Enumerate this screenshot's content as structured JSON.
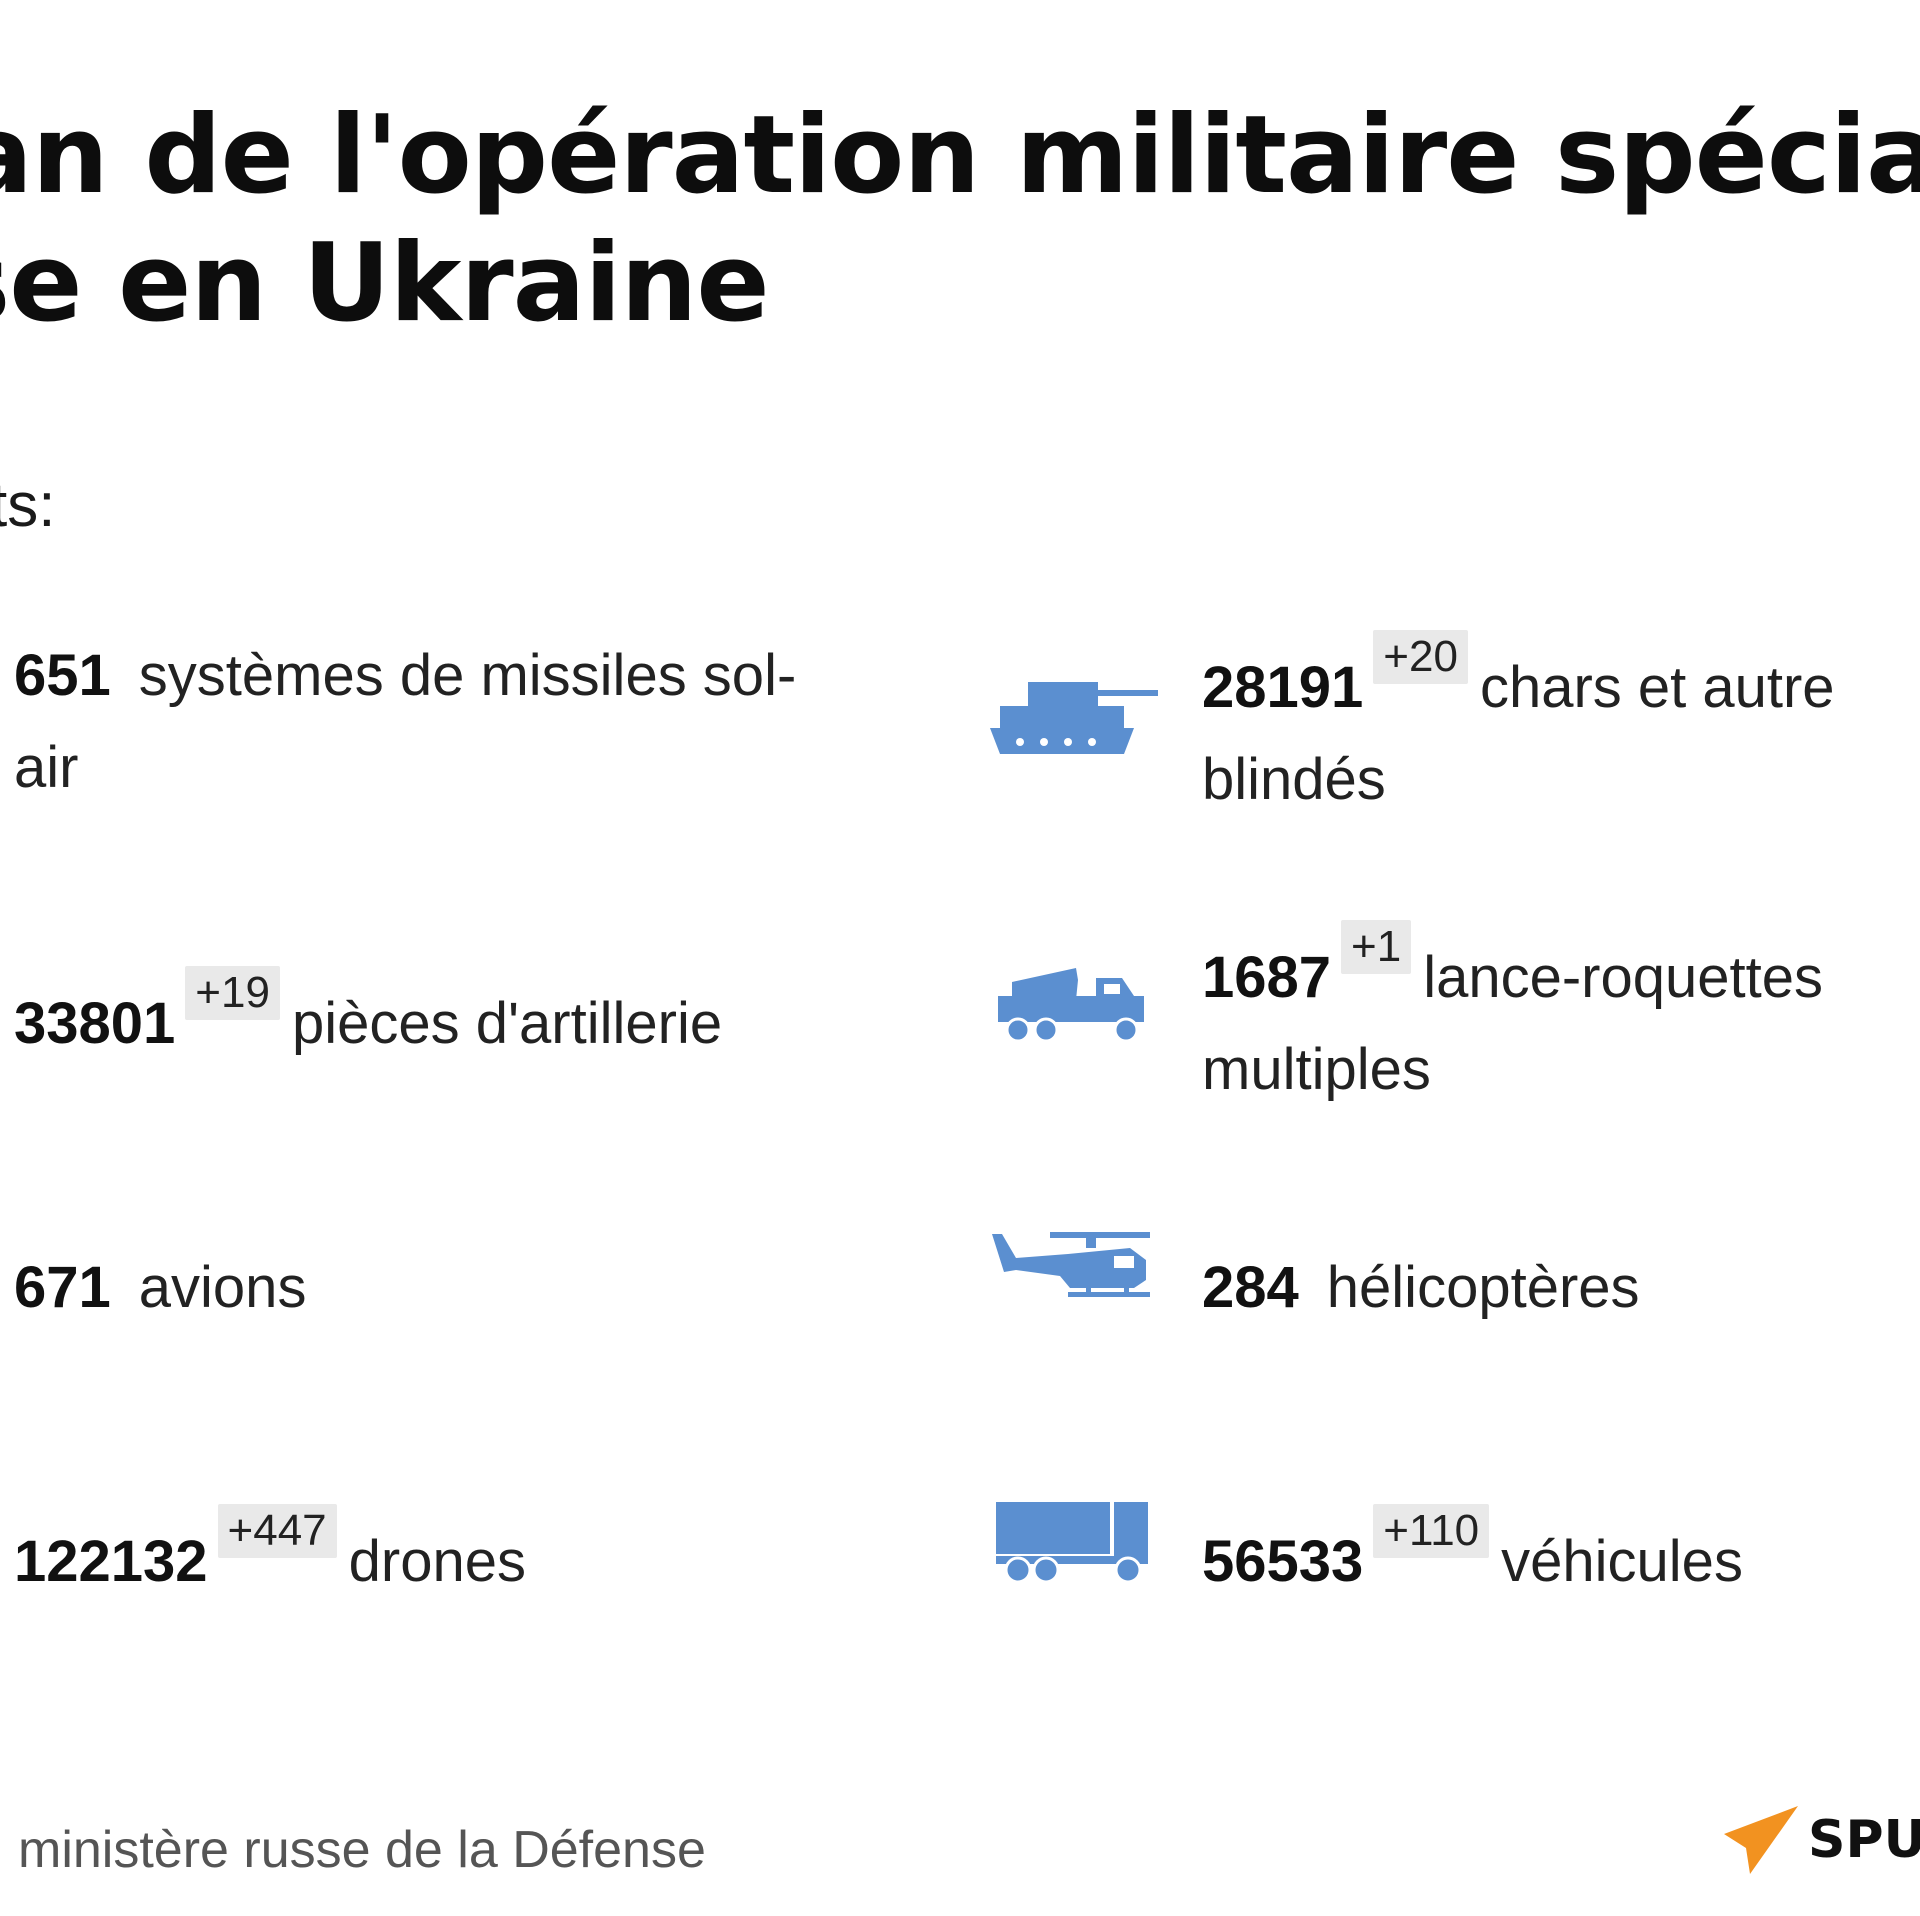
{
  "header": {
    "title_line1": "an de l'opération militaire spécia",
    "title_line2": "se en Ukraine",
    "subtitle": "ts:"
  },
  "stats": {
    "missiles": {
      "value": "651",
      "badge": "",
      "label_line1": "systèmes de missiles sol-",
      "label_line2": "air"
    },
    "tanks": {
      "value": "28191",
      "badge": "+20",
      "label_line1": "chars et autre",
      "label_line2": "blindés",
      "icon": "tank-icon"
    },
    "artillery": {
      "value": "33801",
      "badge": "+19",
      "label": "pièces d'artillerie"
    },
    "mlrs": {
      "value": "1687",
      "badge": "+1",
      "label_line1": "lance-roquettes",
      "label_line2": "multiples",
      "icon": "rocket-launcher-icon"
    },
    "planes": {
      "value": "671",
      "label": "avions"
    },
    "helicopters": {
      "value": "284",
      "label": "hélicoptères",
      "icon": "helicopter-icon"
    },
    "drones": {
      "value": "122132",
      "badge": "+447",
      "label": "drones"
    },
    "vehicles": {
      "value": "56533",
      "badge": "+110",
      "label": "véhicules",
      "icon": "truck-icon"
    }
  },
  "footer": {
    "source": "ministère russe de la Défense",
    "logo_text": "SPU"
  },
  "colors": {
    "icon": "#5b8fd0",
    "logo_orange": "#f29220",
    "badge_bg": "#e9e9e9"
  }
}
